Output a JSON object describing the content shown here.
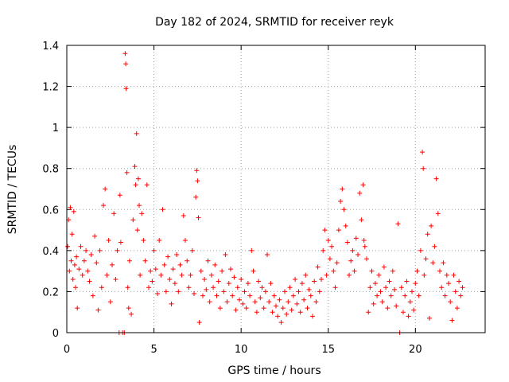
{
  "chart_data": {
    "type": "scatter",
    "title": "Day 182 of 2024, SRMTID for receiver reyk",
    "xlabel": "GPS time / hours",
    "ylabel": "SRMTID / TECUs",
    "xlim": [
      0,
      24
    ],
    "ylim": [
      0,
      1.4
    ],
    "xticks": [
      "0",
      "5",
      "10",
      "15",
      "20"
    ],
    "yticks": [
      "0",
      "0.2",
      "0.4",
      "0.6",
      "0.8",
      "1",
      "1.2",
      "1.4"
    ],
    "grid": true,
    "marker": "+",
    "color": "#ff0000",
    "series": [
      {
        "name": "SRMTID",
        "points": [
          [
            0.05,
            0.42
          ],
          [
            0.1,
            0.55
          ],
          [
            0.15,
            0.3
          ],
          [
            0.2,
            0.61
          ],
          [
            0.25,
            0.35
          ],
          [
            0.3,
            0.48
          ],
          [
            0.35,
            0.26
          ],
          [
            0.4,
            0.59
          ],
          [
            0.45,
            0.33
          ],
          [
            0.5,
            0.22
          ],
          [
            0.55,
            0.37
          ],
          [
            0.6,
            0.12
          ],
          [
            0.7,
            0.31
          ],
          [
            0.8,
            0.42
          ],
          [
            0.9,
            0.28
          ],
          [
            1.0,
            0.35
          ],
          [
            1.1,
            0.4
          ],
          [
            1.2,
            0.3
          ],
          [
            1.3,
            0.25
          ],
          [
            1.4,
            0.38
          ],
          [
            1.5,
            0.18
          ],
          [
            1.6,
            0.47
          ],
          [
            1.7,
            0.34
          ],
          [
            1.8,
            0.11
          ],
          [
            1.9,
            0.4
          ],
          [
            2.0,
            0.22
          ],
          [
            2.1,
            0.62
          ],
          [
            2.2,
            0.7
          ],
          [
            2.3,
            0.28
          ],
          [
            2.4,
            0.45
          ],
          [
            2.5,
            0.15
          ],
          [
            2.6,
            0.33
          ],
          [
            2.7,
            0.58
          ],
          [
            2.8,
            0.26
          ],
          [
            2.9,
            0.4
          ],
          [
            3.0,
            0.0
          ],
          [
            3.05,
            0.67
          ],
          [
            3.1,
            0.44
          ],
          [
            3.2,
            0.0
          ],
          [
            3.3,
            0.0
          ],
          [
            3.35,
            1.36
          ],
          [
            3.38,
            1.31
          ],
          [
            3.4,
            1.19
          ],
          [
            3.45,
            0.78
          ],
          [
            3.5,
            0.22
          ],
          [
            3.55,
            0.12
          ],
          [
            3.6,
            0.35
          ],
          [
            3.7,
            0.09
          ],
          [
            3.8,
            0.55
          ],
          [
            3.9,
            0.81
          ],
          [
            3.95,
            0.72
          ],
          [
            4.0,
            0.97
          ],
          [
            4.05,
            0.5
          ],
          [
            4.1,
            0.75
          ],
          [
            4.15,
            0.62
          ],
          [
            4.2,
            0.28
          ],
          [
            4.3,
            0.58
          ],
          [
            4.4,
            0.45
          ],
          [
            4.5,
            0.35
          ],
          [
            4.6,
            0.72
          ],
          [
            4.7,
            0.22
          ],
          [
            4.8,
            0.3
          ],
          [
            4.9,
            0.25
          ],
          [
            5.0,
            0.4
          ],
          [
            5.1,
            0.31
          ],
          [
            5.2,
            0.19
          ],
          [
            5.3,
            0.45
          ],
          [
            5.4,
            0.28
          ],
          [
            5.5,
            0.6
          ],
          [
            5.6,
            0.33
          ],
          [
            5.7,
            0.2
          ],
          [
            5.8,
            0.37
          ],
          [
            5.9,
            0.26
          ],
          [
            6.0,
            0.14
          ],
          [
            6.1,
            0.31
          ],
          [
            6.2,
            0.24
          ],
          [
            6.3,
            0.38
          ],
          [
            6.4,
            0.2
          ],
          [
            6.5,
            0.33
          ],
          [
            6.6,
            0.28
          ],
          [
            6.7,
            0.57
          ],
          [
            6.8,
            0.45
          ],
          [
            6.9,
            0.35
          ],
          [
            7.0,
            0.22
          ],
          [
            7.1,
            0.28
          ],
          [
            7.2,
            0.4
          ],
          [
            7.3,
            0.19
          ],
          [
            7.4,
            0.66
          ],
          [
            7.45,
            0.79
          ],
          [
            7.5,
            0.74
          ],
          [
            7.55,
            0.56
          ],
          [
            7.6,
            0.05
          ],
          [
            7.7,
            0.3
          ],
          [
            7.8,
            0.18
          ],
          [
            7.9,
            0.26
          ],
          [
            8.0,
            0.21
          ],
          [
            8.1,
            0.35
          ],
          [
            8.2,
            0.15
          ],
          [
            8.3,
            0.28
          ],
          [
            8.4,
            0.22
          ],
          [
            8.5,
            0.33
          ],
          [
            8.6,
            0.18
          ],
          [
            8.7,
            0.25
          ],
          [
            8.8,
            0.12
          ],
          [
            8.9,
            0.3
          ],
          [
            9.0,
            0.2
          ],
          [
            9.1,
            0.38
          ],
          [
            9.2,
            0.15
          ],
          [
            9.3,
            0.24
          ],
          [
            9.4,
            0.31
          ],
          [
            9.5,
            0.18
          ],
          [
            9.6,
            0.27
          ],
          [
            9.7,
            0.11
          ],
          [
            9.8,
            0.22
          ],
          [
            9.9,
            0.16
          ],
          [
            10.0,
            0.26
          ],
          [
            10.1,
            0.14
          ],
          [
            10.2,
            0.2
          ],
          [
            10.3,
            0.12
          ],
          [
            10.4,
            0.24
          ],
          [
            10.5,
            0.18
          ],
          [
            10.6,
            0.4
          ],
          [
            10.7,
            0.3
          ],
          [
            10.8,
            0.15
          ],
          [
            10.9,
            0.1
          ],
          [
            11.0,
            0.25
          ],
          [
            11.1,
            0.17
          ],
          [
            11.2,
            0.22
          ],
          [
            11.3,
            0.12
          ],
          [
            11.4,
            0.2
          ],
          [
            11.5,
            0.38
          ],
          [
            11.6,
            0.15
          ],
          [
            11.7,
            0.24
          ],
          [
            11.8,
            0.1
          ],
          [
            11.9,
            0.18
          ],
          [
            12.0,
            0.13
          ],
          [
            12.1,
            0.08
          ],
          [
            12.2,
            0.16
          ],
          [
            12.3,
            0.05
          ],
          [
            12.4,
            0.12
          ],
          [
            12.5,
            0.2
          ],
          [
            12.6,
            0.09
          ],
          [
            12.7,
            0.15
          ],
          [
            12.8,
            0.22
          ],
          [
            12.9,
            0.11
          ],
          [
            13.0,
            0.18
          ],
          [
            13.1,
            0.26
          ],
          [
            13.2,
            0.14
          ],
          [
            13.3,
            0.2
          ],
          [
            13.4,
            0.1
          ],
          [
            13.5,
            0.24
          ],
          [
            13.6,
            0.16
          ],
          [
            13.7,
            0.28
          ],
          [
            13.8,
            0.12
          ],
          [
            13.9,
            0.21
          ],
          [
            14.0,
            0.18
          ],
          [
            14.1,
            0.08
          ],
          [
            14.2,
            0.25
          ],
          [
            14.3,
            0.15
          ],
          [
            14.4,
            0.32
          ],
          [
            14.5,
            0.2
          ],
          [
            14.6,
            0.26
          ],
          [
            14.7,
            0.4
          ],
          [
            14.8,
            0.5
          ],
          [
            14.9,
            0.28
          ],
          [
            15.0,
            0.45
          ],
          [
            15.1,
            0.36
          ],
          [
            15.2,
            0.42
          ],
          [
            15.3,
            0.3
          ],
          [
            15.4,
            0.22
          ],
          [
            15.5,
            0.34
          ],
          [
            15.6,
            0.5
          ],
          [
            15.7,
            0.64
          ],
          [
            15.8,
            0.7
          ],
          [
            15.9,
            0.6
          ],
          [
            16.0,
            0.52
          ],
          [
            16.1,
            0.44
          ],
          [
            16.2,
            0.28
          ],
          [
            16.3,
            0.35
          ],
          [
            16.4,
            0.4
          ],
          [
            16.5,
            0.3
          ],
          [
            16.6,
            0.46
          ],
          [
            16.7,
            0.38
          ],
          [
            16.8,
            0.68
          ],
          [
            16.9,
            0.55
          ],
          [
            17.0,
            0.72
          ],
          [
            17.05,
            0.45
          ],
          [
            17.1,
            0.42
          ],
          [
            17.2,
            0.36
          ],
          [
            17.3,
            0.1
          ],
          [
            17.4,
            0.22
          ],
          [
            17.5,
            0.3
          ],
          [
            17.6,
            0.14
          ],
          [
            17.7,
            0.24
          ],
          [
            17.8,
            0.18
          ],
          [
            17.9,
            0.28
          ],
          [
            18.0,
            0.2
          ],
          [
            18.1,
            0.15
          ],
          [
            18.2,
            0.32
          ],
          [
            18.3,
            0.22
          ],
          [
            18.4,
            0.12
          ],
          [
            18.5,
            0.25
          ],
          [
            18.6,
            0.18
          ],
          [
            18.7,
            0.3
          ],
          [
            18.8,
            0.21
          ],
          [
            18.9,
            0.13
          ],
          [
            19.0,
            0.53
          ],
          [
            19.1,
            0.0
          ],
          [
            19.2,
            0.22
          ],
          [
            19.3,
            0.1
          ],
          [
            19.4,
            0.18
          ],
          [
            19.5,
            0.25
          ],
          [
            19.6,
            0.08
          ],
          [
            19.7,
            0.15
          ],
          [
            19.8,
            0.2
          ],
          [
            19.9,
            0.11
          ],
          [
            20.0,
            0.24
          ],
          [
            20.1,
            0.3
          ],
          [
            20.2,
            0.18
          ],
          [
            20.3,
            0.4
          ],
          [
            20.4,
            0.88
          ],
          [
            20.45,
            0.8
          ],
          [
            20.5,
            0.28
          ],
          [
            20.6,
            0.36
          ],
          [
            20.7,
            0.48
          ],
          [
            20.8,
            0.07
          ],
          [
            20.9,
            0.52
          ],
          [
            21.0,
            0.34
          ],
          [
            21.1,
            0.42
          ],
          [
            21.2,
            0.75
          ],
          [
            21.3,
            0.58
          ],
          [
            21.4,
            0.3
          ],
          [
            21.5,
            0.22
          ],
          [
            21.6,
            0.34
          ],
          [
            21.7,
            0.18
          ],
          [
            21.8,
            0.28
          ],
          [
            21.9,
            0.24
          ],
          [
            22.0,
            0.15
          ],
          [
            22.1,
            0.06
          ],
          [
            22.2,
            0.28
          ],
          [
            22.3,
            0.2
          ],
          [
            22.4,
            0.12
          ],
          [
            22.5,
            0.25
          ],
          [
            22.6,
            0.18
          ],
          [
            22.7,
            0.22
          ]
        ]
      }
    ]
  }
}
